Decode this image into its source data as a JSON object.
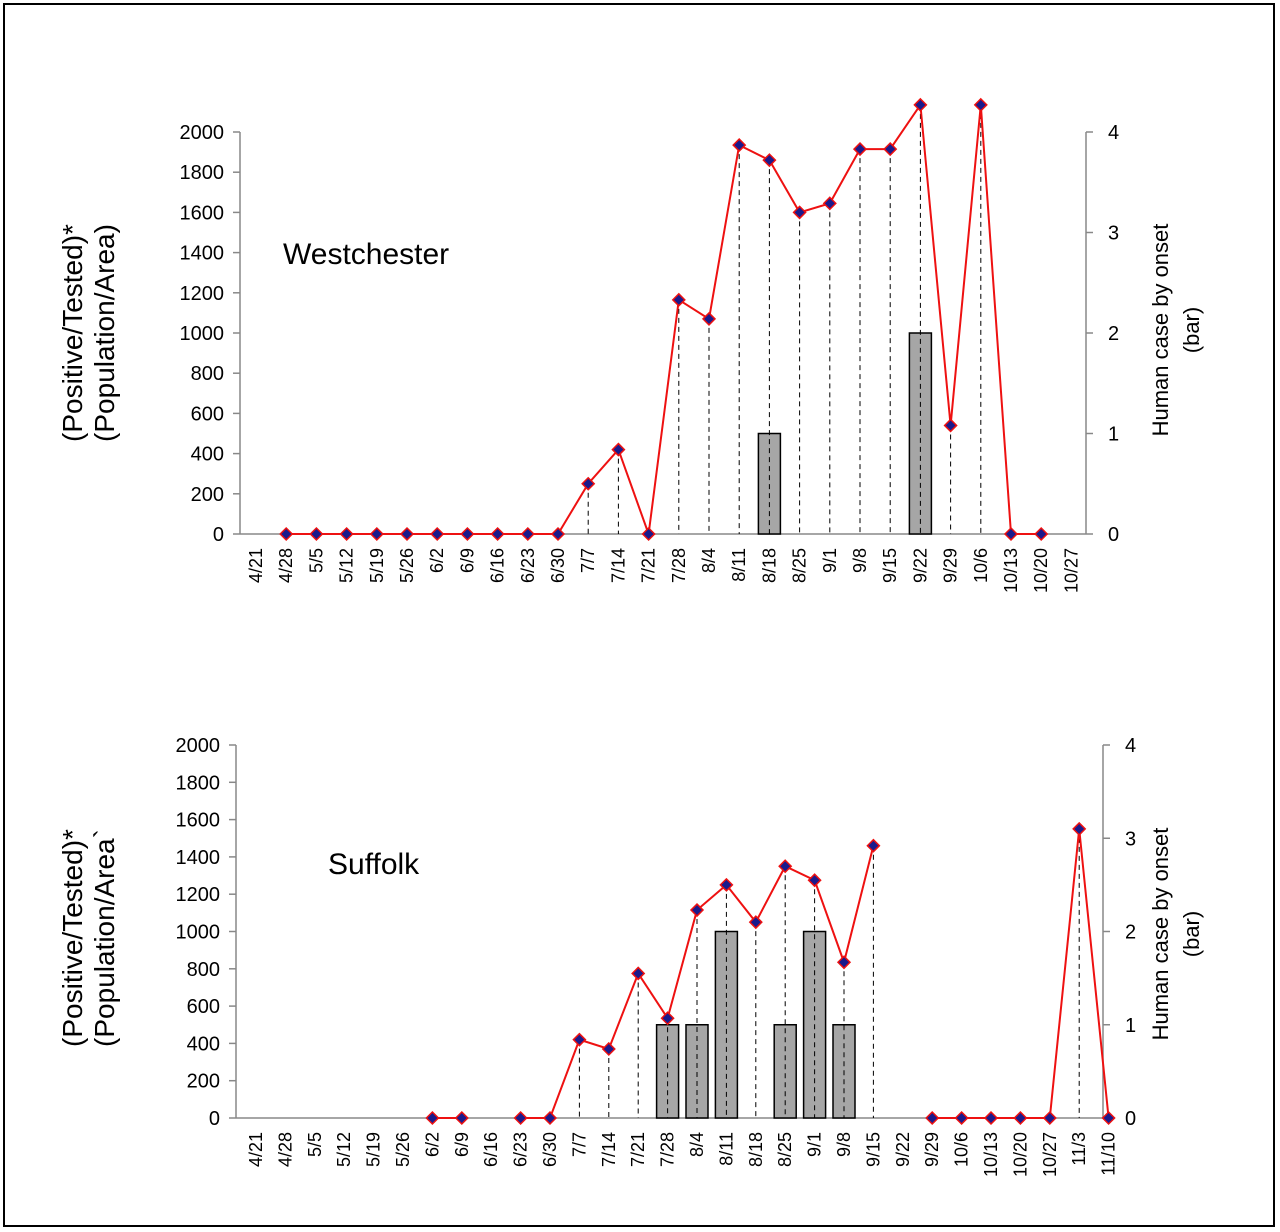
{
  "chart_data": [
    {
      "type": "bar+line",
      "annotation": "Westchester",
      "ylabel_left_line1": "(Positive/Tested)*",
      "ylabel_left_line2": "(Population/Area)",
      "ylabel_right_line1": "Human case by onset",
      "ylabel_right_line2": "(bar)",
      "ylim_left": [
        0,
        2000
      ],
      "ylim_right": [
        0,
        4
      ],
      "yticks_left": [
        "0",
        "200",
        "400",
        "600",
        "800",
        "1000",
        "1200",
        "1400",
        "1600",
        "1800",
        "2000"
      ],
      "yticks_right": [
        "0",
        "1",
        "2",
        "3",
        "4"
      ],
      "categories": [
        "4/21",
        "4/28",
        "5/5",
        "5/12",
        "5/19",
        "5/26",
        "6/2",
        "6/9",
        "6/16",
        "6/23",
        "6/30",
        "7/7",
        "7/14",
        "7/21",
        "7/28",
        "8/4",
        "8/11",
        "8/18",
        "8/25",
        "9/1",
        "9/8",
        "9/15",
        "9/22",
        "9/29",
        "10/6",
        "10/13",
        "10/20",
        "10/27"
      ],
      "line_series": {
        "color": "#ee1111",
        "marker_color": "#1a1a8c",
        "values": [
          null,
          0,
          0,
          0,
          0,
          0,
          0,
          0,
          0,
          0,
          0,
          250,
          420,
          0,
          1165,
          1070,
          1935,
          1860,
          1600,
          1645,
          1915,
          1915,
          2135,
          540,
          2135,
          0,
          0,
          null
        ]
      },
      "bar_series": {
        "color": "#a6a6a6",
        "values": [
          0,
          0,
          0,
          0,
          0,
          0,
          0,
          0,
          0,
          0,
          0,
          0,
          0,
          0,
          0,
          0,
          0,
          1,
          0,
          0,
          0,
          0,
          2,
          0,
          0,
          0,
          0,
          0
        ]
      }
    },
    {
      "type": "bar+line",
      "annotation": "Suffolk",
      "ylabel_left_line1": "(Positive/Tested)*",
      "ylabel_left_line2": "(Population/Area`",
      "ylabel_right_line1": "Human case by onset",
      "ylabel_right_line2": "(bar)",
      "ylim_left": [
        0,
        2000
      ],
      "ylim_right": [
        0,
        4
      ],
      "yticks_left": [
        "0",
        "200",
        "400",
        "600",
        "800",
        "1000",
        "1200",
        "1400",
        "1600",
        "1800",
        "2000"
      ],
      "yticks_right": [
        "0",
        "1",
        "2",
        "3",
        "4"
      ],
      "categories": [
        "4/21",
        "4/28",
        "5/5",
        "5/12",
        "5/19",
        "5/26",
        "6/2",
        "6/9",
        "6/16",
        "6/23",
        "6/30",
        "7/7",
        "7/14",
        "7/21",
        "7/28",
        "8/4",
        "8/11",
        "8/18",
        "8/25",
        "9/1",
        "9/8",
        "9/15",
        "9/22",
        "9/29",
        "10/6",
        "10/13",
        "10/20",
        "10/27",
        "11/3",
        "11/10"
      ],
      "line_series": {
        "color": "#ee1111",
        "marker_color": "#1a1a8c",
        "values": [
          null,
          null,
          null,
          null,
          null,
          null,
          0,
          0,
          null,
          0,
          0,
          420,
          370,
          775,
          535,
          1115,
          1250,
          1050,
          1350,
          1275,
          835,
          1460,
          null,
          0,
          0,
          0,
          0,
          0,
          1550,
          0
        ]
      },
      "bar_series": {
        "color": "#a6a6a6",
        "values": [
          0,
          0,
          0,
          0,
          0,
          0,
          0,
          0,
          0,
          0,
          0,
          0,
          0,
          0,
          1,
          1,
          2,
          0,
          1,
          2,
          1,
          0,
          0,
          0,
          0,
          0,
          0,
          0,
          0,
          0
        ]
      }
    }
  ]
}
